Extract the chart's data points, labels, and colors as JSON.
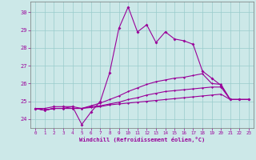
{
  "xlabel": "Windchill (Refroidissement éolien,°C)",
  "background_color": "#cce8e8",
  "line_color": "#990099",
  "grid_color": "#99cccc",
  "ylim": [
    23.5,
    30.6
  ],
  "xlim": [
    -0.5,
    23.5
  ],
  "yticks": [
    24,
    25,
    26,
    27,
    28,
    29,
    30
  ],
  "xticks": [
    0,
    1,
    2,
    3,
    4,
    5,
    6,
    7,
    8,
    9,
    10,
    11,
    12,
    13,
    14,
    15,
    16,
    17,
    18,
    19,
    20,
    21,
    22,
    23
  ],
  "series1": [
    24.6,
    24.6,
    24.7,
    24.7,
    24.7,
    23.7,
    24.4,
    25.0,
    26.6,
    29.1,
    30.3,
    28.9,
    29.3,
    28.3,
    28.9,
    28.5,
    28.4,
    28.2,
    26.7,
    26.3,
    25.9,
    25.1,
    25.1,
    25.1
  ],
  "series2": [
    24.6,
    24.5,
    24.6,
    24.6,
    24.6,
    24.6,
    24.65,
    24.7,
    24.8,
    24.85,
    24.9,
    24.95,
    25.0,
    25.05,
    25.1,
    25.15,
    25.2,
    25.25,
    25.3,
    25.35,
    25.4,
    25.1,
    25.1,
    25.1
  ],
  "series3": [
    24.6,
    24.5,
    24.6,
    24.6,
    24.6,
    24.6,
    24.7,
    24.75,
    24.85,
    24.95,
    25.1,
    25.2,
    25.35,
    25.45,
    25.55,
    25.6,
    25.65,
    25.7,
    25.75,
    25.8,
    25.8,
    25.1,
    25.1,
    25.1
  ],
  "series4": [
    24.6,
    24.5,
    24.6,
    24.6,
    24.7,
    24.6,
    24.75,
    24.9,
    25.1,
    25.3,
    25.55,
    25.75,
    25.95,
    26.1,
    26.2,
    26.3,
    26.35,
    26.45,
    26.55,
    26.0,
    25.95,
    25.1,
    25.1,
    25.1
  ]
}
